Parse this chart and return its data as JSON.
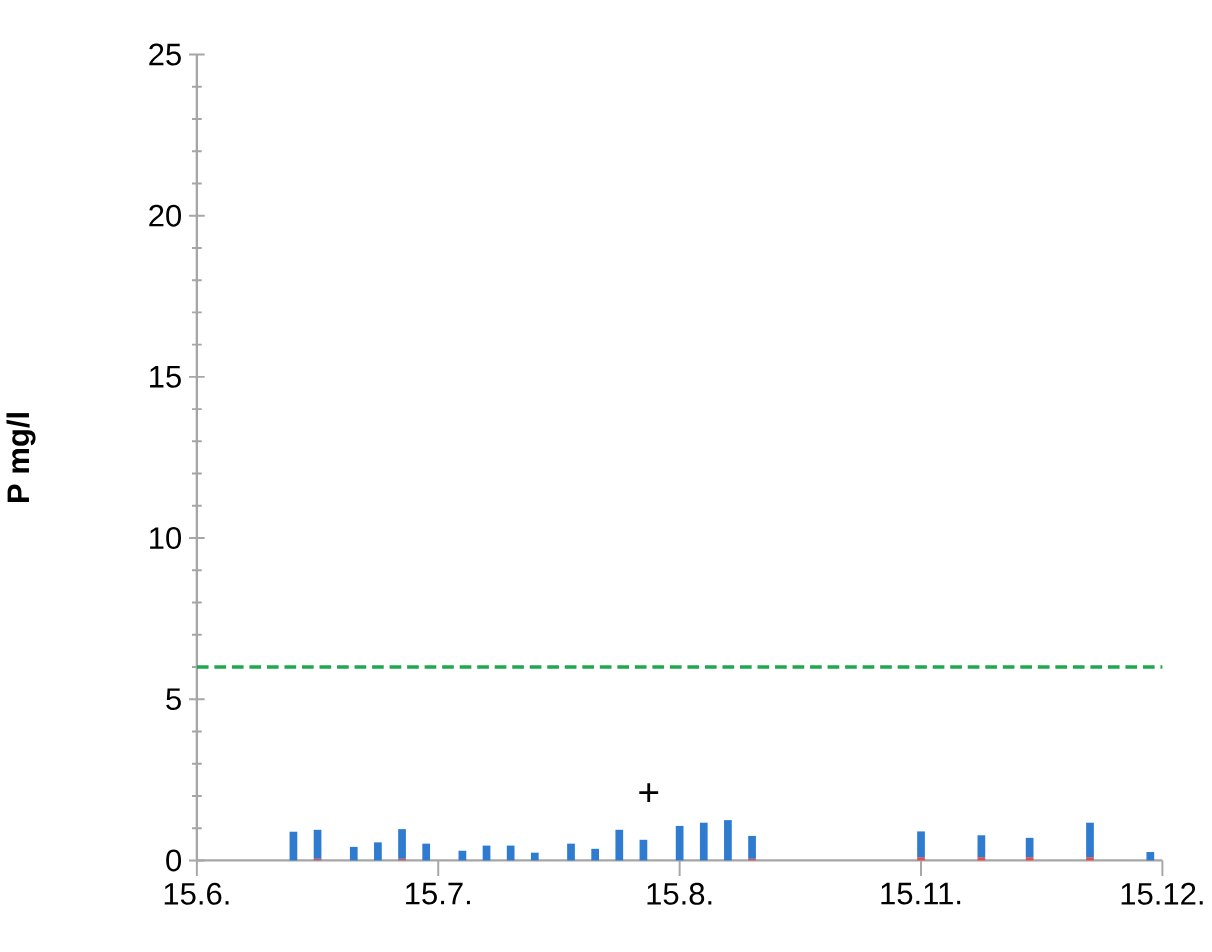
{
  "chart_data": {
    "type": "bar",
    "stacked": true,
    "ylabel": "P mg/l",
    "categories": [
      "15.6.",
      null,
      null,
      null,
      null,
      null,
      null,
      null,
      null,
      null,
      null,
      null,
      null,
      null,
      null,
      null,
      null,
      null,
      null,
      null,
      "15.7.",
      null,
      null,
      null,
      null,
      null,
      null,
      null,
      null,
      null,
      null,
      null,
      null,
      null,
      null,
      null,
      null,
      null,
      null,
      null,
      "15.8.",
      null,
      null,
      null,
      null,
      null,
      null,
      null,
      null,
      null,
      null,
      null,
      null,
      null,
      null,
      null,
      null,
      null,
      null,
      null,
      "15.11.",
      null,
      null,
      null,
      null,
      null,
      null,
      null,
      null,
      null,
      null,
      null,
      null,
      null,
      null,
      null,
      null,
      null,
      null,
      null,
      "15.12."
    ],
    "series": [
      {
        "color": "#e0504f",
        "values": [
          null,
          null,
          null,
          null,
          null,
          null,
          null,
          null,
          null,
          null,
          0.05,
          null,
          null,
          null,
          null,
          null,
          null,
          0.05,
          null,
          null,
          null,
          null,
          null,
          null,
          null,
          null,
          null,
          null,
          null,
          null,
          null,
          null,
          null,
          null,
          null,
          null,
          null,
          null,
          null,
          null,
          null,
          null,
          null,
          null,
          null,
          null,
          0.05,
          null,
          null,
          null,
          null,
          null,
          null,
          null,
          null,
          null,
          null,
          null,
          null,
          null,
          0.1,
          null,
          null,
          null,
          null,
          0.1,
          null,
          null,
          null,
          0.1,
          null,
          null,
          null,
          null,
          0.1,
          null,
          null,
          null,
          null,
          null,
          null
        ]
      },
      {
        "color": "#2e7bcf",
        "values": [
          null,
          null,
          null,
          null,
          null,
          null,
          null,
          null,
          0.89,
          null,
          0.9,
          null,
          null,
          0.42,
          null,
          0.56,
          null,
          0.92,
          null,
          0.52,
          null,
          null,
          0.3,
          null,
          0.46,
          null,
          0.46,
          null,
          0.24,
          null,
          null,
          0.52,
          null,
          0.36,
          null,
          0.95,
          null,
          0.64,
          null,
          null,
          1.07,
          null,
          1.17,
          null,
          1.25,
          null,
          0.71,
          null,
          null,
          null,
          null,
          null,
          null,
          null,
          null,
          null,
          null,
          null,
          null,
          null,
          0.8,
          null,
          null,
          null,
          null,
          0.68,
          null,
          null,
          null,
          0.6,
          null,
          null,
          null,
          null,
          1.07,
          null,
          null,
          null,
          null,
          0.26,
          null
        ]
      }
    ],
    "ylim": [
      0,
      25
    ],
    "yticks": [
      0,
      5,
      10,
      15,
      20,
      25
    ],
    "ref_lines": [
      {
        "axis": "y",
        "value": 6,
        "color": "#1fa84f",
        "line_style": "dashed"
      }
    ],
    "annotations": [
      "+"
    ]
  }
}
